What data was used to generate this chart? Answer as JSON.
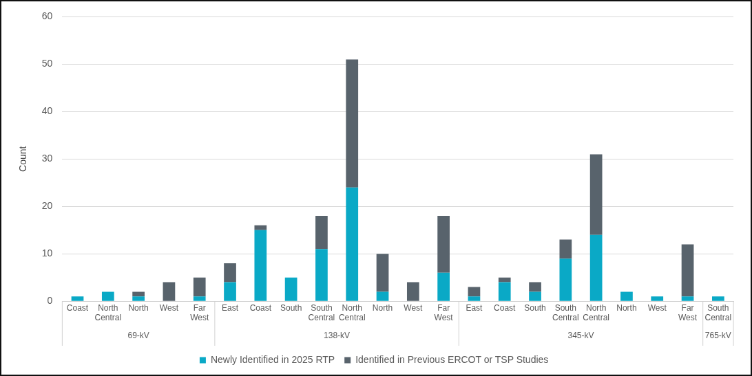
{
  "chart_data": {
    "type": "bar",
    "stacked": true,
    "ylabel": "Count",
    "categories": [
      "Coast",
      "North Central",
      "North",
      "West",
      "Far West",
      "East",
      "Coast",
      "South",
      "South Central",
      "North Central",
      "North",
      "West",
      "Far West",
      "East",
      "Coast",
      "South",
      "South Central",
      "North Central",
      "North",
      "West",
      "Far West",
      "South Central"
    ],
    "series": [
      {
        "name": "Newly Identified in 2025 RTP",
        "color": "#0aa9c6",
        "values": [
          1,
          2,
          1,
          0,
          1,
          4,
          15,
          5,
          11,
          24,
          2,
          0,
          6,
          1,
          4,
          2,
          9,
          14,
          2,
          1,
          1,
          1
        ]
      },
      {
        "name": "Identified in Previous ERCOT or TSP Studies",
        "color": "#58636c",
        "values": [
          0,
          0,
          1,
          4,
          4,
          4,
          1,
          0,
          7,
          27,
          8,
          4,
          12,
          2,
          1,
          2,
          4,
          17,
          0,
          0,
          11,
          0
        ]
      }
    ],
    "annotations": [
      "69-kV",
      "138-kV",
      "345-kV",
      "765-kV"
    ],
    "ylim": [
      0,
      60
    ],
    "yticks": [
      0,
      10,
      20,
      30,
      40,
      50,
      60
    ],
    "grid": "y",
    "legend": "bottom"
  }
}
